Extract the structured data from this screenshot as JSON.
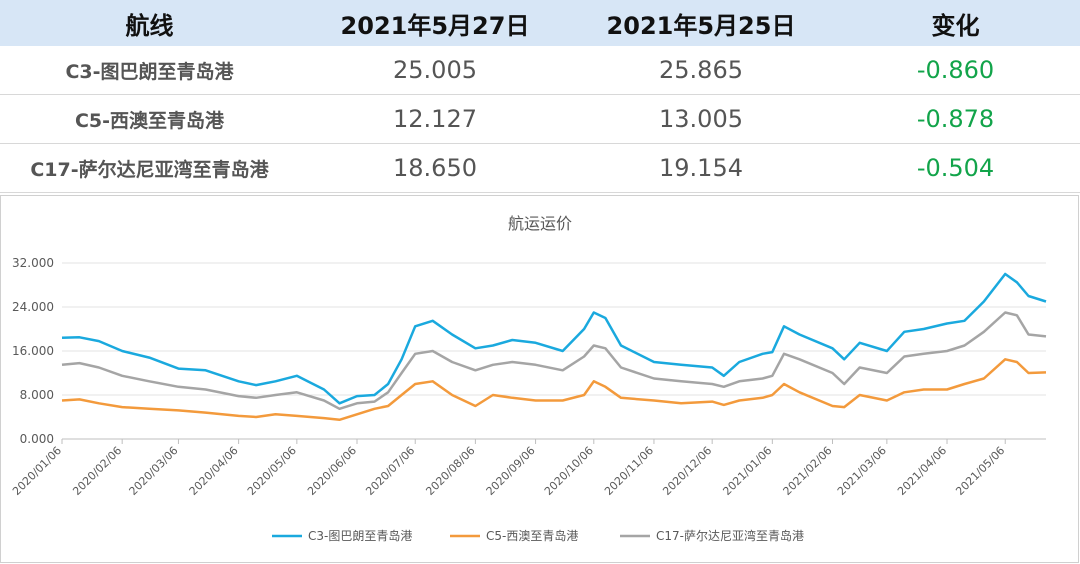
{
  "table": {
    "headers": [
      "航线",
      "2021年5月27日",
      "2021年5月25日",
      "变化"
    ],
    "rows": [
      {
        "route": "C3-图巴朗至青岛港",
        "current": "25.005",
        "previous": "25.865",
        "change": "-0.860"
      },
      {
        "route": "C5-西澳至青岛港",
        "current": "12.127",
        "previous": "13.005",
        "change": "-0.878"
      },
      {
        "route": "C17-萨尔达尼亚湾至青岛港",
        "current": "18.650",
        "previous": "19.154",
        "change": "-0.504"
      }
    ]
  },
  "colors": {
    "c3": "#1aa9de",
    "c5": "#f39a3c",
    "c17": "#a5a5a5",
    "change_negative": "#12a44a",
    "header_bg": "#d7e6f6"
  },
  "chart_data": {
    "type": "line",
    "title": "航运运价",
    "xlabel": "",
    "ylabel": "",
    "ylim": [
      0,
      32
    ],
    "y_ticks": [
      "0.000",
      "8.000",
      "16.000",
      "24.000",
      "32.000"
    ],
    "x_range": [
      "2020/01/06",
      "2021/05/27"
    ],
    "x_ticks": [
      "2020/01/06",
      "2020/02/06",
      "2020/03/06",
      "2020/04/06",
      "2020/05/06",
      "2020/06/06",
      "2020/07/06",
      "2020/08/06",
      "2020/09/06",
      "2020/10/06",
      "2020/11/06",
      "2020/12/06",
      "2021/01/06",
      "2021/02/06",
      "2021/03/06",
      "2021/04/06",
      "2021/05/06"
    ],
    "grid": true,
    "legend": "bottom",
    "series": [
      {
        "name": "C3-图巴朗至青岛港",
        "points": [
          [
            "2020/01/06",
            18.4
          ],
          [
            "2020/01/15",
            18.5
          ],
          [
            "2020/01/25",
            17.8
          ],
          [
            "2020/02/06",
            16.0
          ],
          [
            "2020/02/20",
            14.8
          ],
          [
            "2020/03/06",
            12.8
          ],
          [
            "2020/03/20",
            12.5
          ],
          [
            "2020/04/06",
            10.5
          ],
          [
            "2020/04/15",
            9.8
          ],
          [
            "2020/04/25",
            10.5
          ],
          [
            "2020/05/06",
            11.5
          ],
          [
            "2020/05/20",
            9.0
          ],
          [
            "2020/05/28",
            6.5
          ],
          [
            "2020/06/06",
            7.8
          ],
          [
            "2020/06/15",
            8.0
          ],
          [
            "2020/06/22",
            10.0
          ],
          [
            "2020/06/29",
            14.5
          ],
          [
            "2020/07/06",
            20.5
          ],
          [
            "2020/07/15",
            21.5
          ],
          [
            "2020/07/25",
            19.0
          ],
          [
            "2020/08/06",
            16.5
          ],
          [
            "2020/08/15",
            17.0
          ],
          [
            "2020/08/25",
            18.0
          ],
          [
            "2020/09/06",
            17.5
          ],
          [
            "2020/09/20",
            16.0
          ],
          [
            "2020/10/01",
            20.0
          ],
          [
            "2020/10/06",
            23.0
          ],
          [
            "2020/10/12",
            22.0
          ],
          [
            "2020/10/20",
            17.0
          ],
          [
            "2020/11/06",
            14.0
          ],
          [
            "2020/11/20",
            13.5
          ],
          [
            "2020/12/06",
            13.0
          ],
          [
            "2020/12/12",
            11.5
          ],
          [
            "2020/12/20",
            14.0
          ],
          [
            "2021/01/01",
            15.5
          ],
          [
            "2021/01/06",
            15.8
          ],
          [
            "2021/01/12",
            20.5
          ],
          [
            "2021/01/20",
            19.0
          ],
          [
            "2021/02/06",
            16.5
          ],
          [
            "2021/02/12",
            14.5
          ],
          [
            "2021/02/20",
            17.5
          ],
          [
            "2021/03/06",
            16.0
          ],
          [
            "2021/03/15",
            19.5
          ],
          [
            "2021/03/25",
            20.0
          ],
          [
            "2021/04/06",
            21.0
          ],
          [
            "2021/04/15",
            21.5
          ],
          [
            "2021/04/25",
            25.0
          ],
          [
            "2021/05/06",
            30.0
          ],
          [
            "2021/05/12",
            28.5
          ],
          [
            "2021/05/18",
            26.0
          ],
          [
            "2021/05/27",
            25.0
          ]
        ]
      },
      {
        "name": "C5-西澳至青岛港",
        "points": [
          [
            "2020/01/06",
            7.0
          ],
          [
            "2020/01/15",
            7.2
          ],
          [
            "2020/01/25",
            6.5
          ],
          [
            "2020/02/06",
            5.8
          ],
          [
            "2020/02/20",
            5.5
          ],
          [
            "2020/03/06",
            5.2
          ],
          [
            "2020/03/20",
            4.8
          ],
          [
            "2020/04/06",
            4.2
          ],
          [
            "2020/04/15",
            4.0
          ],
          [
            "2020/04/25",
            4.5
          ],
          [
            "2020/05/06",
            4.2
          ],
          [
            "2020/05/20",
            3.8
          ],
          [
            "2020/05/28",
            3.5
          ],
          [
            "2020/06/06",
            4.5
          ],
          [
            "2020/06/15",
            5.5
          ],
          [
            "2020/06/22",
            6.0
          ],
          [
            "2020/06/29",
            8.0
          ],
          [
            "2020/07/06",
            10.0
          ],
          [
            "2020/07/15",
            10.5
          ],
          [
            "2020/07/25",
            8.0
          ],
          [
            "2020/08/06",
            6.0
          ],
          [
            "2020/08/15",
            8.0
          ],
          [
            "2020/08/25",
            7.5
          ],
          [
            "2020/09/06",
            7.0
          ],
          [
            "2020/09/20",
            7.0
          ],
          [
            "2020/10/01",
            8.0
          ],
          [
            "2020/10/06",
            10.5
          ],
          [
            "2020/10/12",
            9.5
          ],
          [
            "2020/10/20",
            7.5
          ],
          [
            "2020/11/06",
            7.0
          ],
          [
            "2020/11/20",
            6.5
          ],
          [
            "2020/12/06",
            6.8
          ],
          [
            "2020/12/12",
            6.2
          ],
          [
            "2020/12/20",
            7.0
          ],
          [
            "2021/01/01",
            7.5
          ],
          [
            "2021/01/06",
            8.0
          ],
          [
            "2021/01/12",
            10.0
          ],
          [
            "2021/01/20",
            8.5
          ],
          [
            "2021/02/06",
            6.0
          ],
          [
            "2021/02/12",
            5.8
          ],
          [
            "2021/02/20",
            8.0
          ],
          [
            "2021/03/06",
            7.0
          ],
          [
            "2021/03/15",
            8.5
          ],
          [
            "2021/03/25",
            9.0
          ],
          [
            "2021/04/06",
            9.0
          ],
          [
            "2021/04/15",
            10.0
          ],
          [
            "2021/04/25",
            11.0
          ],
          [
            "2021/05/06",
            14.5
          ],
          [
            "2021/05/12",
            14.0
          ],
          [
            "2021/05/18",
            12.0
          ],
          [
            "2021/05/27",
            12.1
          ]
        ]
      },
      {
        "name": "C17-萨尔达尼亚湾至青岛港",
        "points": [
          [
            "2020/01/06",
            13.5
          ],
          [
            "2020/01/15",
            13.8
          ],
          [
            "2020/01/25",
            13.0
          ],
          [
            "2020/02/06",
            11.5
          ],
          [
            "2020/02/20",
            10.5
          ],
          [
            "2020/03/06",
            9.5
          ],
          [
            "2020/03/20",
            9.0
          ],
          [
            "2020/04/06",
            7.8
          ],
          [
            "2020/04/15",
            7.5
          ],
          [
            "2020/04/25",
            8.0
          ],
          [
            "2020/05/06",
            8.5
          ],
          [
            "2020/05/20",
            7.0
          ],
          [
            "2020/05/28",
            5.5
          ],
          [
            "2020/06/06",
            6.5
          ],
          [
            "2020/06/15",
            6.8
          ],
          [
            "2020/06/22",
            8.5
          ],
          [
            "2020/06/29",
            12.0
          ],
          [
            "2020/07/06",
            15.5
          ],
          [
            "2020/07/15",
            16.0
          ],
          [
            "2020/07/25",
            14.0
          ],
          [
            "2020/08/06",
            12.5
          ],
          [
            "2020/08/15",
            13.5
          ],
          [
            "2020/08/25",
            14.0
          ],
          [
            "2020/09/06",
            13.5
          ],
          [
            "2020/09/20",
            12.5
          ],
          [
            "2020/10/01",
            15.0
          ],
          [
            "2020/10/06",
            17.0
          ],
          [
            "2020/10/12",
            16.5
          ],
          [
            "2020/10/20",
            13.0
          ],
          [
            "2020/11/06",
            11.0
          ],
          [
            "2020/11/20",
            10.5
          ],
          [
            "2020/12/06",
            10.0
          ],
          [
            "2020/12/12",
            9.5
          ],
          [
            "2020/12/20",
            10.5
          ],
          [
            "2021/01/01",
            11.0
          ],
          [
            "2021/01/06",
            11.5
          ],
          [
            "2021/01/12",
            15.5
          ],
          [
            "2021/01/20",
            14.5
          ],
          [
            "2021/02/06",
            12.0
          ],
          [
            "2021/02/12",
            10.0
          ],
          [
            "2021/02/20",
            13.0
          ],
          [
            "2021/03/06",
            12.0
          ],
          [
            "2021/03/15",
            15.0
          ],
          [
            "2021/03/25",
            15.5
          ],
          [
            "2021/04/06",
            16.0
          ],
          [
            "2021/04/15",
            17.0
          ],
          [
            "2021/04/25",
            19.5
          ],
          [
            "2021/05/06",
            23.0
          ],
          [
            "2021/05/12",
            22.5
          ],
          [
            "2021/05/18",
            19.0
          ],
          [
            "2021/05/27",
            18.65
          ]
        ]
      }
    ]
  }
}
